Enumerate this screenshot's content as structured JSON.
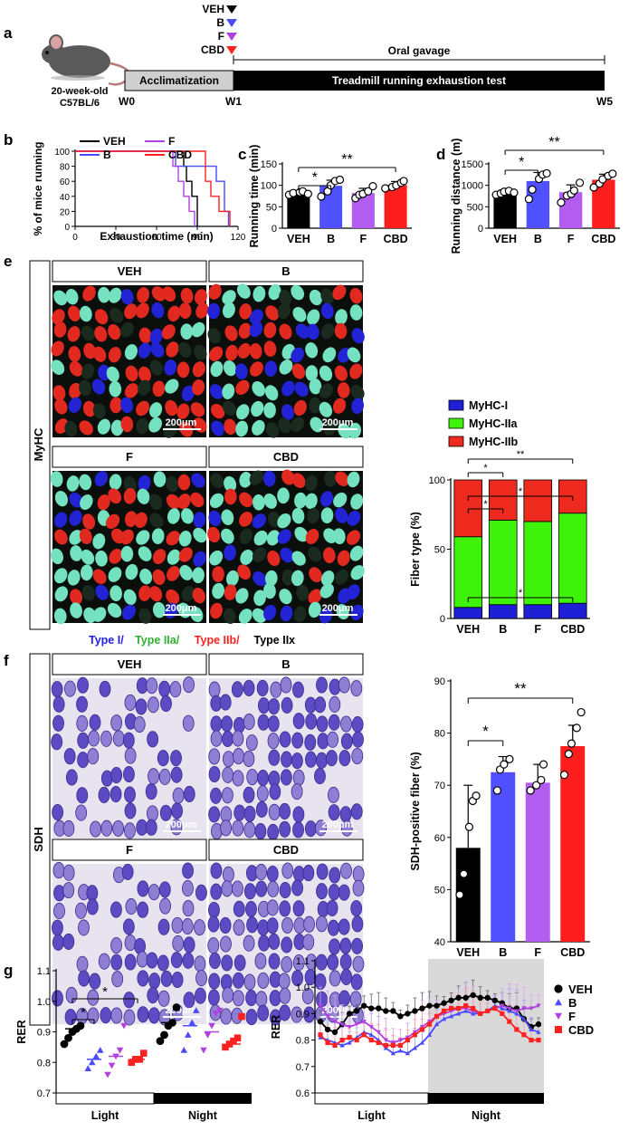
{
  "panel_a": {
    "letter": "a",
    "mouse_label_1": "20-week-old",
    "mouse_label_2": "C57BL/6",
    "legend": [
      {
        "label": "VEH",
        "color": "#000000"
      },
      {
        "label": "B",
        "color": "#4a4aff"
      },
      {
        "label": "F",
        "color": "#b040e0"
      },
      {
        "label": "CBD",
        "color": "#ff2020"
      }
    ],
    "oral_gavage": "Oral gavage",
    "acclimatization": "Acclimatization",
    "treadmill": "Treadmill running exhaustion test",
    "weeks": [
      "W0",
      "W1",
      "W5"
    ]
  },
  "panel_b": {
    "letter": "b",
    "ylabel": "% of mice running",
    "xlabel": "Exhaustion time (min)",
    "yticks": [
      "0",
      "20",
      "40",
      "60",
      "80",
      "100"
    ],
    "xticks": [
      "0",
      "30",
      "60",
      "90",
      "120"
    ],
    "legend": [
      {
        "label": "VEH",
        "color": "#000000"
      },
      {
        "label": "F",
        "color": "#b040e0"
      },
      {
        "label": "B",
        "color": "#4a4aff"
      },
      {
        "label": "CBD",
        "color": "#ff2020"
      }
    ]
  },
  "panel_c": {
    "letter": "c",
    "ylabel": "Running time (min)",
    "yticks": [
      "0",
      "50",
      "100",
      "150"
    ],
    "categories": [
      "VEH",
      "B",
      "F",
      "CBD"
    ],
    "sig": [
      "*",
      "**"
    ]
  },
  "panel_d": {
    "letter": "d",
    "ylabel": "Running distance (m)",
    "yticks": [
      "0",
      "500",
      "1000",
      "1500"
    ],
    "categories": [
      "VEH",
      "B",
      "F",
      "CBD"
    ],
    "sig": [
      "*",
      "**"
    ]
  },
  "panel_e": {
    "letter": "e",
    "side_label": "MyHC",
    "image_titles": [
      "VEH",
      "B",
      "F",
      "CBD"
    ],
    "scale": "200μm",
    "type_legend": [
      {
        "label": "Type I/",
        "color": "#2020e0"
      },
      {
        "label": "Type IIa/",
        "color": "#30b030"
      },
      {
        "label": "Type IIb/",
        "color": "#ff2020"
      },
      {
        "label": "Type IIx",
        "color": "#000000"
      }
    ],
    "ylabel": "Fiber type (%)",
    "yticks": [
      "0",
      "50",
      "100"
    ],
    "categories": [
      "VEH",
      "B",
      "F",
      "CBD"
    ],
    "legend": [
      {
        "label": "MyHC-I",
        "color": "#1f1fd6"
      },
      {
        "label": "MyHC-IIa",
        "color": "#3ff20a"
      },
      {
        "label": "MyHC-IIb",
        "color": "#ee2a1e"
      }
    ],
    "sig": [
      "*",
      "**",
      "*",
      "*",
      "*"
    ]
  },
  "panel_f": {
    "letter": "f",
    "side_label": "SDH",
    "image_titles": [
      "VEH",
      "B",
      "F",
      "CBD"
    ],
    "scale": "200μm",
    "ylabel": "SDH-positive fiber (%)",
    "yticks": [
      "40",
      "50",
      "60",
      "70",
      "80",
      "90"
    ],
    "categories": [
      "VEH",
      "B",
      "F",
      "CBD"
    ],
    "sig": [
      "*",
      "**"
    ]
  },
  "panel_g": {
    "letter": "g",
    "ylabel": "RER",
    "yticks_left": [
      "0.7",
      "0.8",
      "0.9",
      "1.0",
      "1.1"
    ],
    "yticks_right": [
      "0.6",
      "0.7",
      "0.8",
      "0.9",
      "1.0",
      "1.1"
    ],
    "light": "Light",
    "night": "Night",
    "sig": [
      "*",
      "*"
    ],
    "legend": [
      {
        "label": "VEH",
        "color": "#000000",
        "marker": "circle"
      },
      {
        "label": "B",
        "color": "#4a4aff",
        "marker": "triangle-up"
      },
      {
        "label": "F",
        "color": "#b040e0",
        "marker": "triangle-down"
      },
      {
        "label": "CBD",
        "color": "#ff2020",
        "marker": "square"
      }
    ]
  },
  "chart_data": [
    {
      "panel": "b",
      "type": "line",
      "xlabel": "Exhaustion time (min)",
      "ylabel": "% of mice running",
      "xlim": [
        0,
        120
      ],
      "ylim": [
        0,
        100
      ],
      "series": [
        {
          "name": "VEH",
          "x": [
            0,
            78,
            80,
            82,
            86,
            90
          ],
          "y": [
            100,
            100,
            80,
            60,
            40,
            0
          ]
        },
        {
          "name": "B",
          "x": [
            0,
            74,
            98,
            104,
            110,
            113
          ],
          "y": [
            100,
            80,
            80,
            60,
            20,
            0
          ]
        },
        {
          "name": "F",
          "x": [
            0,
            72,
            76,
            80,
            84,
            88
          ],
          "y": [
            100,
            80,
            60,
            40,
            20,
            0
          ]
        },
        {
          "name": "CBD",
          "x": [
            0,
            90,
            96,
            100,
            106,
            114
          ],
          "y": [
            100,
            100,
            60,
            40,
            20,
            0
          ]
        }
      ]
    },
    {
      "panel": "c",
      "type": "bar",
      "ylabel": "Running time (min)",
      "ylim": [
        0,
        150
      ],
      "categories": [
        "VEH",
        "B",
        "F",
        "CBD"
      ],
      "values": [
        82,
        99,
        82,
        101
      ],
      "errors": [
        4,
        13,
        11,
        8
      ],
      "points": [
        [
          78,
          82,
          84,
          86,
          80
        ],
        [
          74,
          86,
          100,
          110,
          113
        ],
        [
          70,
          78,
          80,
          86,
          98
        ],
        [
          93,
          96,
          100,
          106,
          110
        ]
      ],
      "colors": [
        "#000000",
        "#5050ff",
        "#b35cf0",
        "#ff1e1e"
      ]
    },
    {
      "panel": "d",
      "type": "bar",
      "ylabel": "Running distance (m)",
      "ylim": [
        0,
        1500
      ],
      "categories": [
        "VEH",
        "B",
        "F",
        "CBD"
      ],
      "values": [
        840,
        1100,
        840,
        1130
      ],
      "errors": [
        60,
        200,
        170,
        130
      ],
      "points": [
        [
          780,
          810,
          850,
          870,
          830
        ],
        [
          680,
          900,
          1150,
          1250,
          1280
        ],
        [
          600,
          760,
          800,
          880,
          1060
        ],
        [
          950,
          1040,
          1140,
          1220,
          1270
        ]
      ],
      "colors": [
        "#000000",
        "#5050ff",
        "#b35cf0",
        "#ff1e1e"
      ]
    },
    {
      "panel": "e",
      "type": "bar",
      "stacked": true,
      "ylabel": "Fiber type (%)",
      "ylim": [
        0,
        100
      ],
      "categories": [
        "VEH",
        "B",
        "F",
        "CBD"
      ],
      "series": [
        {
          "name": "MyHC-I",
          "values": [
            8,
            10,
            10,
            11
          ]
        },
        {
          "name": "MyHC-IIa",
          "values": [
            51,
            61,
            60,
            65
          ]
        },
        {
          "name": "MyHC-IIb",
          "values": [
            41,
            29,
            30,
            24
          ]
        }
      ]
    },
    {
      "panel": "f",
      "type": "bar",
      "ylabel": "SDH-positive fiber (%)",
      "ylim": [
        40,
        90
      ],
      "categories": [
        "VEH",
        "B",
        "F",
        "CBD"
      ],
      "values": [
        58,
        72.5,
        70.5,
        77.5
      ],
      "errors": [
        12,
        3,
        3.5,
        4
      ],
      "points": [
        [
          49,
          53,
          62,
          67,
          68
        ],
        [
          69,
          73,
          74,
          75
        ],
        [
          69,
          70,
          71,
          74
        ],
        [
          72,
          76,
          78,
          81,
          84
        ]
      ],
      "colors": [
        "#000000",
        "#5050ff",
        "#b35cf0",
        "#ff1e1e"
      ]
    },
    {
      "panel": "g-left",
      "type": "scatter",
      "ylabel": "RER",
      "ylim": [
        0.7,
        1.1
      ],
      "groups": [
        {
          "name": "VEH",
          "period": "Light",
          "values": [
            0.86,
            0.88,
            0.9,
            0.91,
            0.92
          ],
          "mean": 0.91
        },
        {
          "name": "B",
          "period": "Light",
          "values": [
            0.78,
            0.8,
            0.82,
            0.84
          ],
          "mean": 0.81
        },
        {
          "name": "F",
          "period": "Light",
          "values": [
            0.76,
            0.79,
            0.82,
            0.84,
            0.92
          ],
          "mean": 0.82
        },
        {
          "name": "CBD",
          "period": "Light",
          "values": [
            0.8,
            0.81,
            0.81,
            0.83
          ],
          "mean": 0.81
        },
        {
          "name": "VEH",
          "period": "Night",
          "values": [
            0.87,
            0.89,
            0.92,
            0.93,
            0.98
          ],
          "mean": 0.93
        },
        {
          "name": "B",
          "period": "Night",
          "values": [
            0.84,
            0.89,
            0.93,
            0.97
          ],
          "mean": 0.92
        },
        {
          "name": "F",
          "period": "Night",
          "values": [
            0.84,
            0.89,
            0.92,
            0.96,
            0.97
          ],
          "mean": 0.9
        },
        {
          "name": "CBD",
          "period": "Night",
          "values": [
            0.85,
            0.86,
            0.87,
            0.88,
            0.95
          ],
          "mean": 0.86
        }
      ]
    },
    {
      "panel": "g-right",
      "type": "line",
      "ylabel": "RER",
      "ylim": [
        0.6,
        1.1
      ],
      "night_start_index": 16,
      "series": [
        {
          "name": "VEH",
          "values": [
            0.87,
            0.84,
            0.83,
            0.86,
            0.9,
            0.91,
            0.93,
            0.92,
            0.92,
            0.91,
            0.91,
            0.89,
            0.9,
            0.91,
            0.92,
            0.93,
            0.93,
            0.94,
            0.95,
            0.96,
            0.96,
            0.97,
            0.96,
            0.96,
            0.95,
            0.94,
            0.92,
            0.92,
            0.88,
            0.85,
            0.86
          ]
        },
        {
          "name": "B",
          "values": [
            0.81,
            0.8,
            0.79,
            0.78,
            0.79,
            0.81,
            0.83,
            0.82,
            0.8,
            0.77,
            0.75,
            0.76,
            0.75,
            0.77,
            0.79,
            0.82,
            0.86,
            0.88,
            0.89,
            0.9,
            0.91,
            0.9,
            0.9,
            0.91,
            0.93,
            0.92,
            0.91,
            0.9,
            0.88,
            0.84,
            0.83
          ]
        },
        {
          "name": "F",
          "values": [
            0.93,
            0.89,
            0.87,
            0.86,
            0.85,
            0.86,
            0.87,
            0.85,
            0.83,
            0.8,
            0.79,
            0.8,
            0.81,
            0.83,
            0.85,
            0.87,
            0.89,
            0.9,
            0.91,
            0.92,
            0.92,
            0.91,
            0.9,
            0.91,
            0.92,
            0.93,
            0.92,
            0.91,
            0.92,
            0.92,
            0.93
          ]
        },
        {
          "name": "CBD",
          "values": [
            0.82,
            0.79,
            0.78,
            0.8,
            0.81,
            0.8,
            0.82,
            0.8,
            0.79,
            0.78,
            0.78,
            0.78,
            0.8,
            0.82,
            0.84,
            0.86,
            0.89,
            0.91,
            0.92,
            0.92,
            0.93,
            0.92,
            0.9,
            0.91,
            0.92,
            0.9,
            0.87,
            0.84,
            0.82,
            0.8,
            0.8
          ]
        }
      ]
    }
  ]
}
